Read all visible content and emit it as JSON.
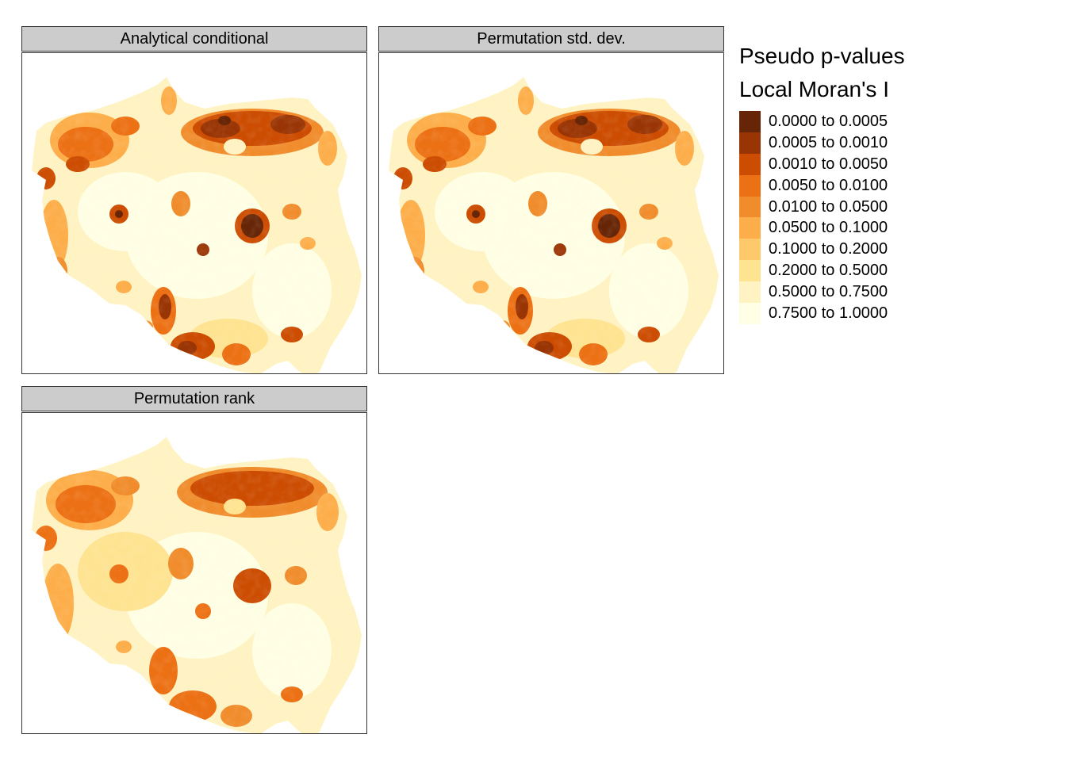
{
  "panels": [
    {
      "title": "Analytical conditional"
    },
    {
      "title": "Permutation std. dev."
    },
    {
      "title": "Permutation rank"
    }
  ],
  "legend": {
    "title_line1": "Pseudo p-values",
    "title_line2": "Local Moran's I",
    "items": [
      {
        "label": "0.0000 to 0.0005",
        "color": "#662506"
      },
      {
        "label": "0.0005 to 0.0010",
        "color": "#993404"
      },
      {
        "label": "0.0010 to 0.0050",
        "color": "#cc4c02"
      },
      {
        "label": "0.0050 to 0.0100",
        "color": "#ec7014"
      },
      {
        "label": "0.0100 to 0.0500",
        "color": "#f08c2c"
      },
      {
        "label": "0.0500 to 0.1000",
        "color": "#fdae4b"
      },
      {
        "label": "0.1000 to 0.2000",
        "color": "#fec96b"
      },
      {
        "label": "0.2000 to 0.5000",
        "color": "#fee391"
      },
      {
        "label": "0.5000 to 0.7500",
        "color": "#fff3c4"
      },
      {
        "label": "0.7500 to 1.0000",
        "color": "#ffffe5"
      }
    ]
  }
}
